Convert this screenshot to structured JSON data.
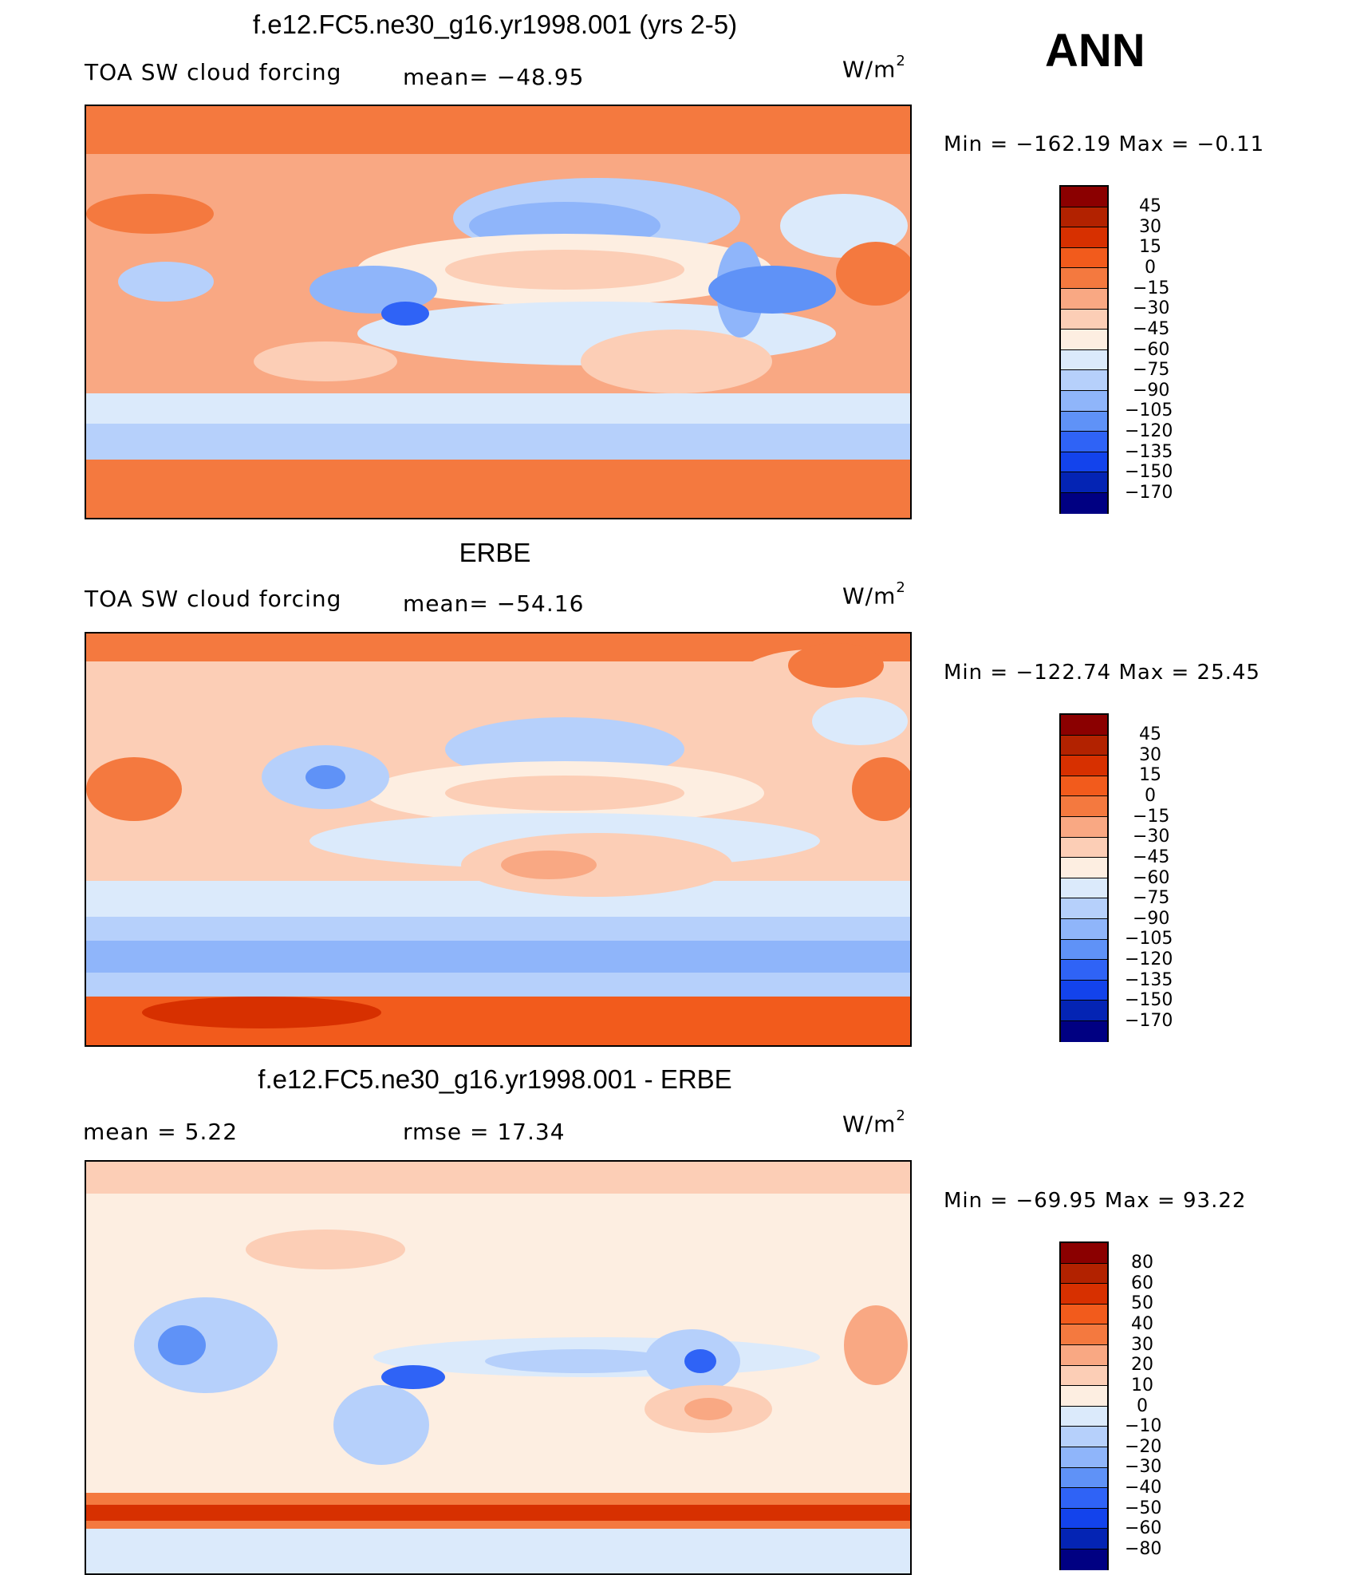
{
  "season": "ANN",
  "colors": {
    "scale": [
      "#8b0000",
      "#b22200",
      "#d73000",
      "#f25b1c",
      "#f4793f",
      "#f9a883",
      "#fcceb6",
      "#fdeee1",
      "#dbeafb",
      "#b6d0fb",
      "#8fb5fa",
      "#5f92f7",
      "#2f63f6",
      "#1343ec",
      "#0424b4",
      "#000082"
    ]
  },
  "panels": [
    {
      "title": "f.e12.FC5.ne30_g16.yr1998.001 (yrs 2-5)",
      "left_label": "TOA SW cloud forcing",
      "mid_label": "mean= −48.95",
      "units": "W/m",
      "units_sup": "2",
      "minmax": "Min = −162.19 Max =  −0.11",
      "scale_labels": [
        "45",
        "30",
        "15",
        "0",
        "−15",
        "−30",
        "−45",
        "−60",
        "−75",
        "−90",
        "−105",
        "−120",
        "−135",
        "−150",
        "−170"
      ]
    },
    {
      "title": "ERBE",
      "left_label": "TOA SW cloud forcing",
      "mid_label": "mean= −54.16",
      "units": "W/m",
      "units_sup": "2",
      "minmax": "Min = −122.74 Max =   25.45",
      "scale_labels": [
        "45",
        "30",
        "15",
        "0",
        "−15",
        "−30",
        "−45",
        "−60",
        "−75",
        "−90",
        "−105",
        "−120",
        "−135",
        "−150",
        "−170"
      ]
    },
    {
      "title": "f.e12.FC5.ne30_g16.yr1998.001 - ERBE",
      "left_label": "mean =    5.22",
      "mid_label": "rmse =   17.34",
      "units": "W/m",
      "units_sup": "2",
      "minmax": "Min = −69.95 Max =   93.22",
      "scale_labels": [
        "80",
        "60",
        "50",
        "40",
        "30",
        "20",
        "10",
        "0",
        "−10",
        "−20",
        "−30",
        "−40",
        "−50",
        "−60",
        "−80"
      ]
    }
  ]
}
